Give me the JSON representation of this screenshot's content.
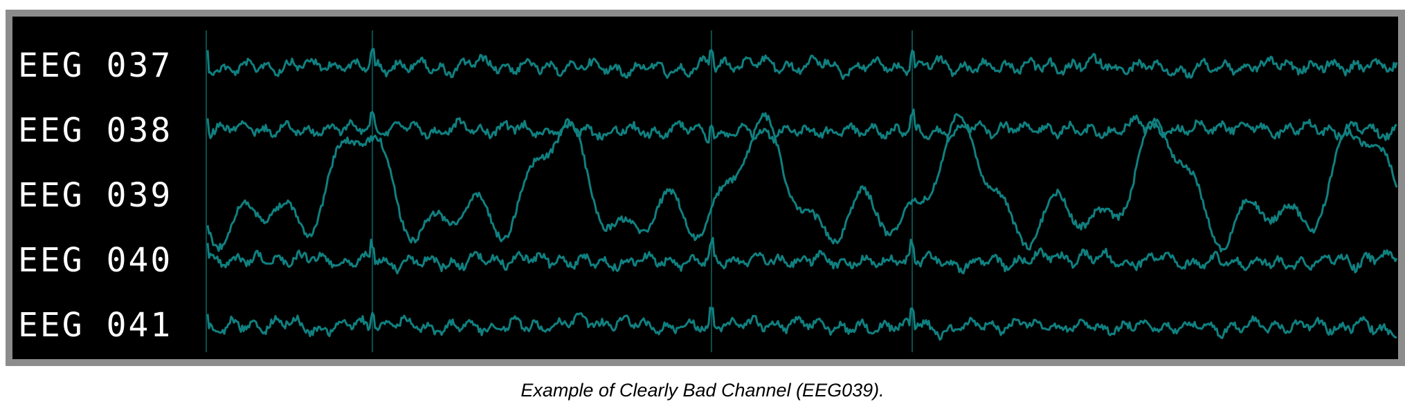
{
  "caption": "Example of Clearly Bad Channel (EEG039).",
  "colors": {
    "trace": "#108080",
    "background": "#000000",
    "frame": "#8c8c8c",
    "label": "#ffffff"
  },
  "chart_data": {
    "type": "line",
    "title": "",
    "xlabel": "",
    "ylabel": "",
    "grid": false,
    "legend": "none",
    "series": [
      {
        "name": "EEG 037",
        "bad": false
      },
      {
        "name": "EEG 038",
        "bad": false
      },
      {
        "name": "EEG 039",
        "bad": true
      },
      {
        "name": "EEG 040",
        "bad": false
      },
      {
        "name": "EEG 041",
        "bad": false
      }
    ]
  }
}
